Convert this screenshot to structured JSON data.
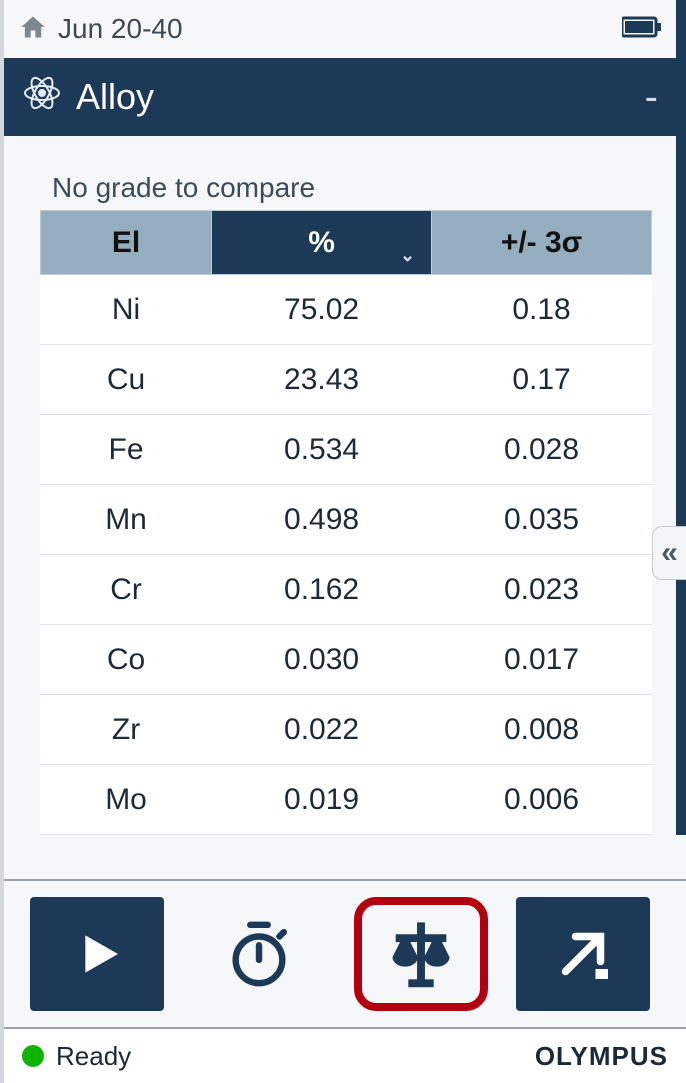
{
  "status": {
    "date": "Jun 20-40"
  },
  "header": {
    "title": "Alloy",
    "collapse": "-"
  },
  "main": {
    "no_grade": "No grade to compare",
    "table": {
      "columns": {
        "el": "El",
        "pct": "%",
        "sigma": "+/- 3σ"
      },
      "rows": [
        {
          "el": "Ni",
          "pct": "75.02",
          "sigma": "0.18"
        },
        {
          "el": "Cu",
          "pct": "23.43",
          "sigma": "0.17"
        },
        {
          "el": "Fe",
          "pct": "0.534",
          "sigma": "0.028"
        },
        {
          "el": "Mn",
          "pct": "0.498",
          "sigma": "0.035"
        },
        {
          "el": "Cr",
          "pct": "0.162",
          "sigma": "0.023"
        },
        {
          "el": "Co",
          "pct": "0.030",
          "sigma": "0.017"
        },
        {
          "el": "Zr",
          "pct": "0.022",
          "sigma": "0.008"
        },
        {
          "el": "Mo",
          "pct": "0.019",
          "sigma": "0.006"
        }
      ]
    }
  },
  "side": {
    "collapse_glyph": "«"
  },
  "footer": {
    "status": "Ready",
    "brand": "OLYMPUS"
  },
  "colors": {
    "brand_dark": "#1c3958",
    "header_light": "#94aebf",
    "highlight_red": "#b30010",
    "status_green": "#0fb400",
    "border_gray": "#c3cad1",
    "bg": "#f6f7f8"
  }
}
